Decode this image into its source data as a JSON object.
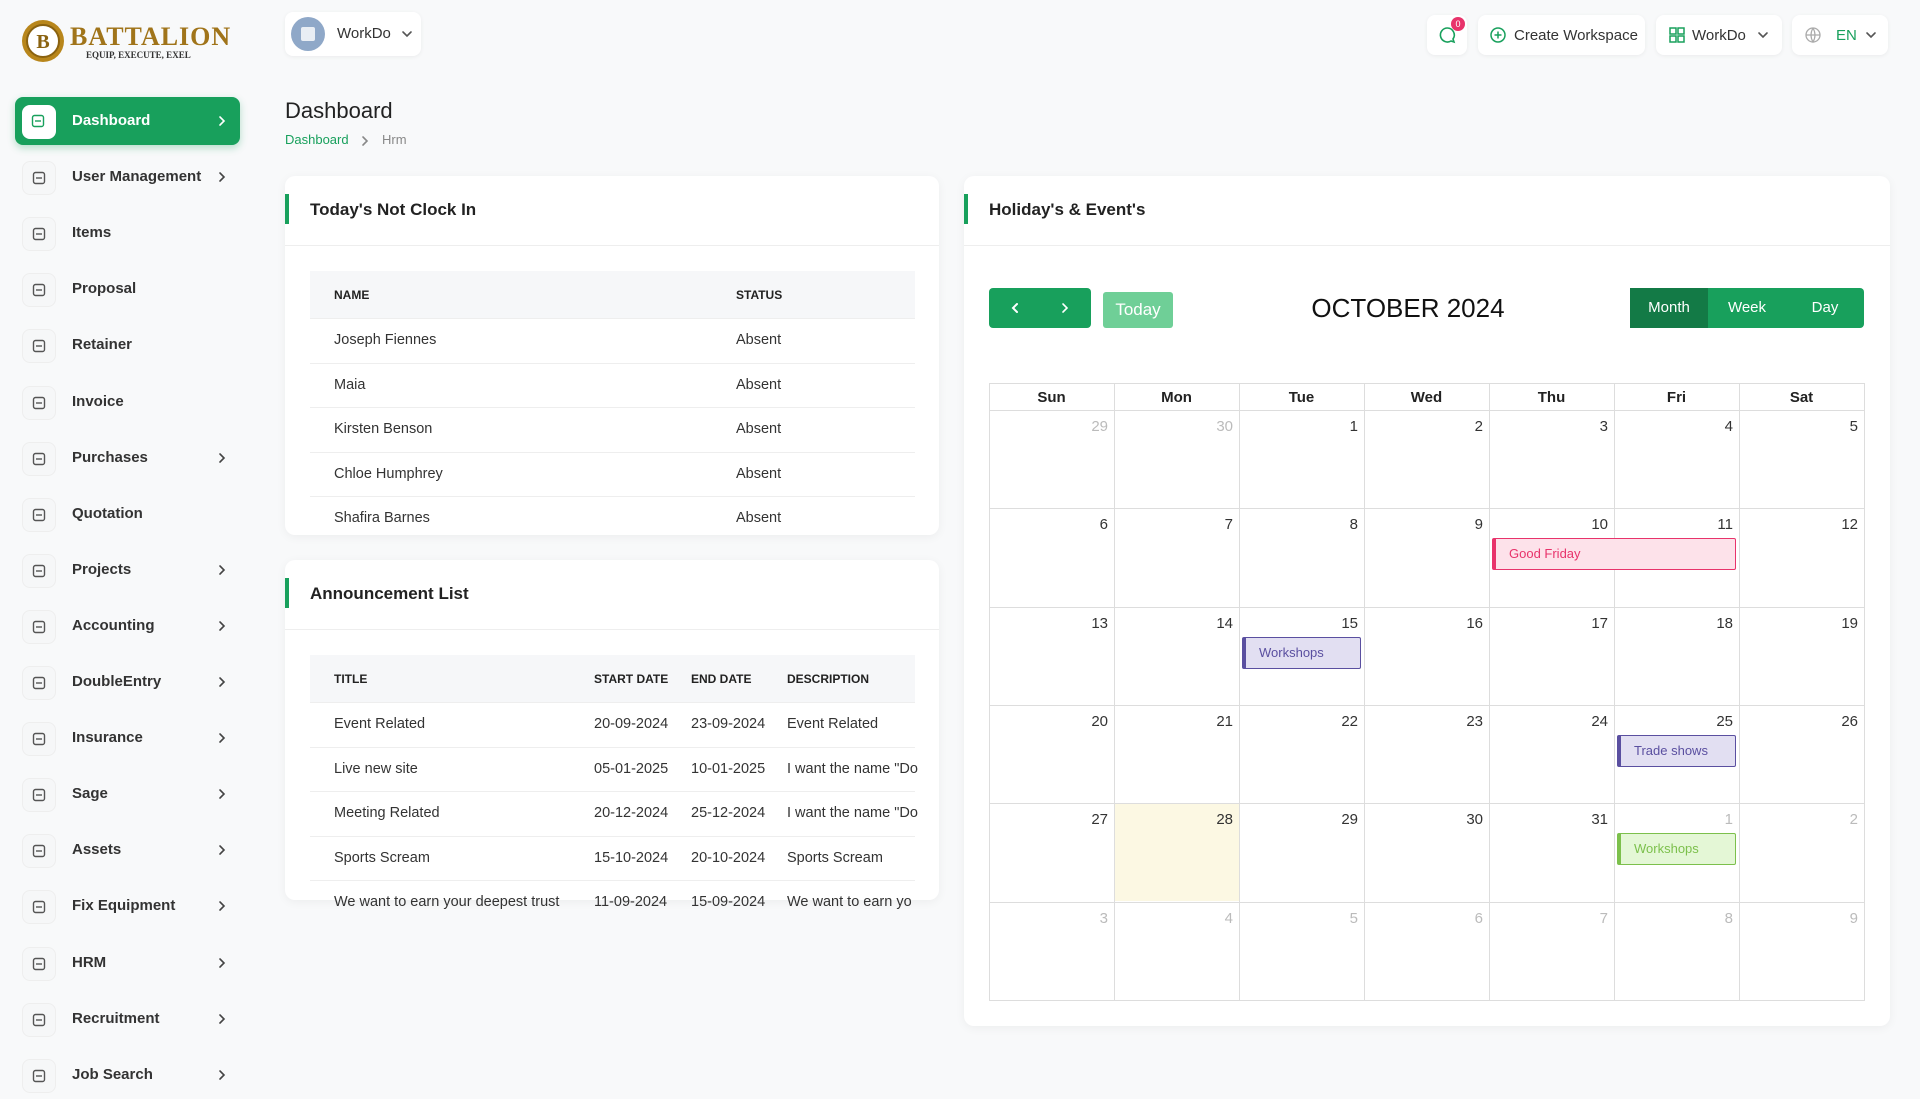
{
  "logo": {
    "name": "BATTALION",
    "tagline": "EQUIP, EXECUTE, EXEL"
  },
  "header": {
    "workspace": "WorkDo",
    "notifications": "0",
    "create_workspace": "Create Workspace",
    "workspace_menu": "WorkDo",
    "language": "EN"
  },
  "sidebar": [
    {
      "label": "Dashboard",
      "active": true,
      "submenu": true
    },
    {
      "label": "User Management",
      "submenu": true
    },
    {
      "label": "Items"
    },
    {
      "label": "Proposal"
    },
    {
      "label": "Retainer"
    },
    {
      "label": "Invoice"
    },
    {
      "label": "Purchases",
      "submenu": true
    },
    {
      "label": "Quotation"
    },
    {
      "label": "Projects",
      "submenu": true
    },
    {
      "label": "Accounting",
      "submenu": true
    },
    {
      "label": "DoubleEntry",
      "submenu": true
    },
    {
      "label": "Insurance",
      "submenu": true
    },
    {
      "label": "Sage",
      "submenu": true
    },
    {
      "label": "Assets",
      "submenu": true
    },
    {
      "label": "Fix Equipment",
      "submenu": true
    },
    {
      "label": "HRM",
      "submenu": true
    },
    {
      "label": "Recruitment",
      "submenu": true
    },
    {
      "label": "Job Search",
      "submenu": true
    }
  ],
  "page": {
    "title": "Dashboard",
    "breadcrumb": [
      "Dashboard",
      "Hrm"
    ]
  },
  "not_clock_in": {
    "title": "Today's Not Clock In",
    "columns": [
      "NAME",
      "STATUS"
    ],
    "rows": [
      [
        "Joseph Fiennes",
        "Absent"
      ],
      [
        "Maia",
        "Absent"
      ],
      [
        "Kirsten Benson",
        "Absent"
      ],
      [
        "Chloe Humphrey",
        "Absent"
      ],
      [
        "Shafira Barnes",
        "Absent"
      ]
    ]
  },
  "announcements": {
    "title": "Announcement List",
    "columns": [
      "TITLE",
      "START DATE",
      "END DATE",
      "DESCRIPTION"
    ],
    "rows": [
      [
        "Event Related",
        "20-09-2024",
        "23-09-2024",
        "Event Related"
      ],
      [
        "Live new site",
        "05-01-2025",
        "10-01-2025",
        "I want the name \"Do"
      ],
      [
        "Meeting Related",
        "20-12-2024",
        "25-12-2024",
        "I want the name \"Do"
      ],
      [
        "Sports Scream",
        "15-10-2024",
        "20-10-2024",
        "Sports Scream"
      ],
      [
        "We want to earn your deepest trust",
        "11-09-2024",
        "15-09-2024",
        "We want to earn yo"
      ]
    ]
  },
  "calendar": {
    "title": "Holiday's & Event's",
    "today_button": "Today",
    "month": "OCTOBER 2024",
    "views": [
      "Month",
      "Week",
      "Day"
    ],
    "active_view": "Month",
    "weekdays": [
      "Sun",
      "Mon",
      "Tue",
      "Wed",
      "Thu",
      "Fri",
      "Sat"
    ],
    "weeks": [
      [
        {
          "day": 29,
          "other_month": true
        },
        {
          "day": 30,
          "other_month": true
        },
        {
          "day": 1
        },
        {
          "day": 2
        },
        {
          "day": 3
        },
        {
          "day": 4
        },
        {
          "day": 5
        }
      ],
      [
        {
          "day": 6
        },
        {
          "day": 7
        },
        {
          "day": 8
        },
        {
          "day": 9
        },
        {
          "day": 10,
          "event": {
            "title": "Good Friday",
            "days": 2,
            "color": "#e8336b",
            "background": "#fde2ea"
          }
        },
        {
          "day": 11
        },
        {
          "day": 12
        }
      ],
      [
        {
          "day": 13
        },
        {
          "day": 14
        },
        {
          "day": 15,
          "event": {
            "title": "Workshops",
            "days": 1,
            "color": "#5a4fa0",
            "background": "#e2dff2"
          }
        },
        {
          "day": 16
        },
        {
          "day": 17
        },
        {
          "day": 18
        },
        {
          "day": 19
        }
      ],
      [
        {
          "day": 20
        },
        {
          "day": 21
        },
        {
          "day": 22
        },
        {
          "day": 23
        },
        {
          "day": 24
        },
        {
          "day": 25,
          "event": {
            "title": "Trade shows",
            "days": 1,
            "color": "#5a4fa0",
            "background": "#e2dff2"
          }
        },
        {
          "day": 26
        }
      ],
      [
        {
          "day": 27
        },
        {
          "day": 28,
          "today": true
        },
        {
          "day": 29
        },
        {
          "day": 30
        },
        {
          "day": 31
        },
        {
          "day": 1,
          "other_month": true,
          "event": {
            "title": "Workshops",
            "days": 1,
            "color": "#7cc04c",
            "background": "#e4f7d6"
          }
        },
        {
          "day": 2,
          "other_month": true
        }
      ],
      [
        {
          "day": 3,
          "other_month": true
        },
        {
          "day": 4,
          "other_month": true
        },
        {
          "day": 5,
          "other_month": true
        },
        {
          "day": 6,
          "other_month": true
        },
        {
          "day": 7,
          "other_month": true
        },
        {
          "day": 8,
          "other_month": true
        },
        {
          "day": 9,
          "other_month": true
        }
      ]
    ]
  }
}
